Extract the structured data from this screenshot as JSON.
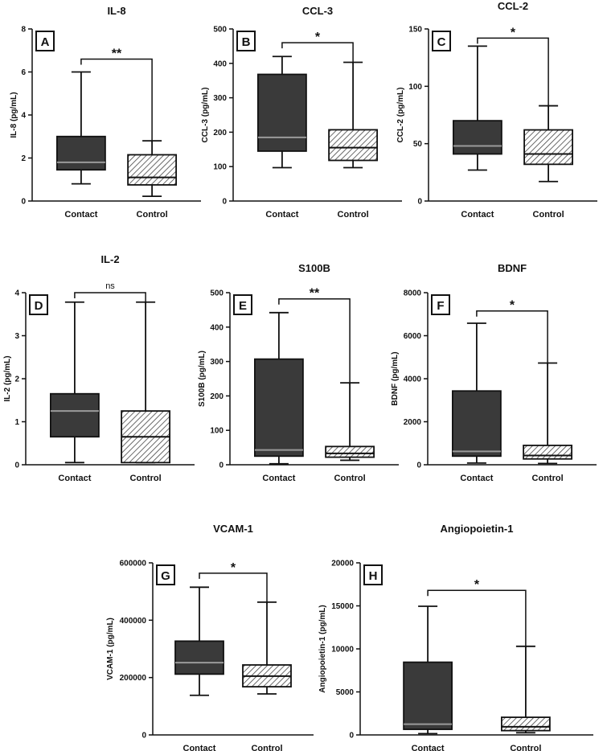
{
  "colors": {
    "dark_box": "#3a3a3a",
    "line": "#111111",
    "hatch": "#444444",
    "background": "#ffffff"
  },
  "chart_data": [
    {
      "type": "box",
      "panel": "A",
      "title": "IL-8",
      "ylabel": "IL-8 (pg/mL)",
      "ylim": [
        0,
        8
      ],
      "yticks": [
        "0",
        "2",
        "4",
        "6",
        "8"
      ],
      "categories": [
        "Contact",
        "Control"
      ],
      "series": [
        {
          "name": "Contact",
          "min": 0.8,
          "q1": 1.45,
          "median": 1.8,
          "q3": 3.0,
          "max": 6.0,
          "fill": "solid"
        },
        {
          "name": "Control",
          "min": 0.22,
          "q1": 0.75,
          "median": 1.1,
          "q3": 2.15,
          "max": 2.8,
          "fill": "hatched"
        }
      ],
      "significance": "**",
      "sig_level": 6.6
    },
    {
      "type": "box",
      "panel": "B",
      "title": "CCL-3",
      "ylabel": "CCL-3 (pg/mL)",
      "ylim": [
        0,
        500
      ],
      "yticks": [
        "0",
        "100",
        "200",
        "300",
        "400",
        "500"
      ],
      "categories": [
        "Contact",
        "Control"
      ],
      "series": [
        {
          "name": "Contact",
          "min": 97,
          "q1": 145,
          "median": 185,
          "q3": 368,
          "max": 420,
          "fill": "solid"
        },
        {
          "name": "Control",
          "min": 97,
          "q1": 118,
          "median": 155,
          "q3": 207,
          "max": 403,
          "fill": "hatched"
        }
      ],
      "significance": "*",
      "sig_level": 460
    },
    {
      "type": "box",
      "panel": "C",
      "title": "CCL-2",
      "ylabel": "CCL-2 (pg/mL)",
      "ylim": [
        0,
        150
      ],
      "yticks": [
        "0",
        "50",
        "100",
        "150"
      ],
      "categories": [
        "Contact",
        "Control"
      ],
      "series": [
        {
          "name": "Contact",
          "min": 27,
          "q1": 41,
          "median": 48,
          "q3": 70,
          "max": 135,
          "fill": "solid"
        },
        {
          "name": "Control",
          "min": 17,
          "q1": 32,
          "median": 41,
          "q3": 62,
          "max": 83,
          "fill": "hatched"
        }
      ],
      "significance": "*",
      "sig_level": 142
    },
    {
      "type": "box",
      "panel": "D",
      "title": "IL-2",
      "ylabel": "IL-2 (pg/mL)",
      "ylim": [
        0,
        4
      ],
      "yticks": [
        "0",
        "1",
        "2",
        "3",
        "4"
      ],
      "categories": [
        "Contact",
        "Control"
      ],
      "series": [
        {
          "name": "Contact",
          "min": 0.05,
          "q1": 0.65,
          "median": 1.25,
          "q3": 1.65,
          "max": 3.78,
          "fill": "solid"
        },
        {
          "name": "Control",
          "min": 0.05,
          "q1": 0.05,
          "median": 0.65,
          "q3": 1.25,
          "max": 3.78,
          "fill": "hatched"
        }
      ],
      "significance": "ns",
      "sig_level": 4.0
    },
    {
      "type": "box",
      "panel": "E",
      "title": "S100B",
      "ylabel": "S100B (pg/mL)",
      "ylim": [
        0,
        500
      ],
      "yticks": [
        "0",
        "100",
        "200",
        "300",
        "400",
        "500"
      ],
      "categories": [
        "Contact",
        "Control"
      ],
      "series": [
        {
          "name": "Contact",
          "min": 3,
          "q1": 25,
          "median": 43,
          "q3": 307,
          "max": 442,
          "fill": "solid"
        },
        {
          "name": "Control",
          "min": 13,
          "q1": 22,
          "median": 33,
          "q3": 53,
          "max": 238,
          "fill": "hatched"
        }
      ],
      "significance": "**",
      "sig_level": 482
    },
    {
      "type": "box",
      "panel": "F",
      "title": "BDNF",
      "ylabel": "BDNF (pg/mL)",
      "ylim": [
        0,
        8000
      ],
      "yticks": [
        "0",
        "2000",
        "4000",
        "6000",
        "8000"
      ],
      "categories": [
        "Contact",
        "Control"
      ],
      "series": [
        {
          "name": "Contact",
          "min": 80,
          "q1": 400,
          "median": 620,
          "q3": 3430,
          "max": 6580,
          "fill": "solid"
        },
        {
          "name": "Control",
          "min": 60,
          "q1": 270,
          "median": 430,
          "q3": 900,
          "max": 4730,
          "fill": "hatched"
        }
      ],
      "significance": "*",
      "sig_level": 7150
    },
    {
      "type": "box",
      "panel": "G",
      "title": "VCAM-1",
      "ylabel": "VCAM-1 (pg/mL)",
      "ylim": [
        0,
        600000
      ],
      "yticks": [
        "0",
        "200000",
        "400000",
        "600000"
      ],
      "categories": [
        "Contact",
        "Control"
      ],
      "series": [
        {
          "name": "Contact",
          "min": 138000,
          "q1": 212000,
          "median": 252000,
          "q3": 327000,
          "max": 515000,
          "fill": "solid"
        },
        {
          "name": "Control",
          "min": 143000,
          "q1": 168000,
          "median": 205000,
          "q3": 244000,
          "max": 463000,
          "fill": "hatched"
        }
      ],
      "significance": "*",
      "sig_level": 564000
    },
    {
      "type": "box",
      "panel": "H",
      "title": "Angiopoietin-1",
      "ylabel": "Angiopoietin-1 (pg/mL)",
      "ylim": [
        0,
        20000
      ],
      "yticks": [
        "0",
        "5000",
        "10000",
        "15000",
        "20000"
      ],
      "categories": [
        "Contact",
        "Control"
      ],
      "series": [
        {
          "name": "Contact",
          "min": 150,
          "q1": 650,
          "median": 1250,
          "q3": 8450,
          "max": 14950,
          "fill": "solid"
        },
        {
          "name": "Control",
          "min": 250,
          "q1": 500,
          "median": 950,
          "q3": 2050,
          "max": 10300,
          "fill": "hatched"
        }
      ],
      "significance": "*",
      "sig_level": 16800
    }
  ]
}
